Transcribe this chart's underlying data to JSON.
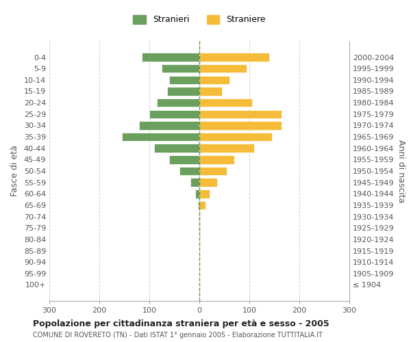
{
  "age_groups": [
    "100+",
    "95-99",
    "90-94",
    "85-89",
    "80-84",
    "75-79",
    "70-74",
    "65-69",
    "60-64",
    "55-59",
    "50-54",
    "45-49",
    "40-44",
    "35-39",
    "30-34",
    "25-29",
    "20-24",
    "15-19",
    "10-14",
    "5-9",
    "0-4"
  ],
  "birth_years": [
    "≤ 1904",
    "1905-1909",
    "1910-1914",
    "1915-1919",
    "1920-1924",
    "1925-1929",
    "1930-1934",
    "1935-1939",
    "1940-1944",
    "1945-1949",
    "1950-1954",
    "1955-1959",
    "1960-1964",
    "1965-1969",
    "1970-1974",
    "1975-1979",
    "1980-1984",
    "1985-1989",
    "1990-1994",
    "1995-1999",
    "2000-2004"
  ],
  "males": [
    0,
    0,
    0,
    0,
    0,
    1,
    2,
    3,
    8,
    18,
    40,
    60,
    90,
    155,
    120,
    100,
    85,
    65,
    60,
    75,
    115
  ],
  "females": [
    0,
    0,
    0,
    0,
    2,
    2,
    2,
    12,
    20,
    35,
    55,
    70,
    110,
    145,
    165,
    165,
    105,
    45,
    60,
    95,
    140
  ],
  "male_color": "#6a9f5e",
  "female_color": "#f5bc3a",
  "background_color": "#ffffff",
  "grid_color": "#cccccc",
  "title": "Popolazione per cittadinanza straniera per età e sesso - 2005",
  "subtitle": "COMUNE DI ROVERETO (TN) - Dati ISTAT 1° gennaio 2005 - Elaborazione TUTTITALIA.IT",
  "ylabel_left": "Fasce di età",
  "ylabel_right": "Anni di nascita",
  "legend_male": "Stranieri",
  "legend_female": "Straniere",
  "xlim": 300,
  "xticks": [
    -300,
    -200,
    -100,
    0,
    100,
    200,
    300
  ],
  "xticklabels": [
    "300",
    "200",
    "100",
    "0",
    "100",
    "200",
    "300"
  ]
}
